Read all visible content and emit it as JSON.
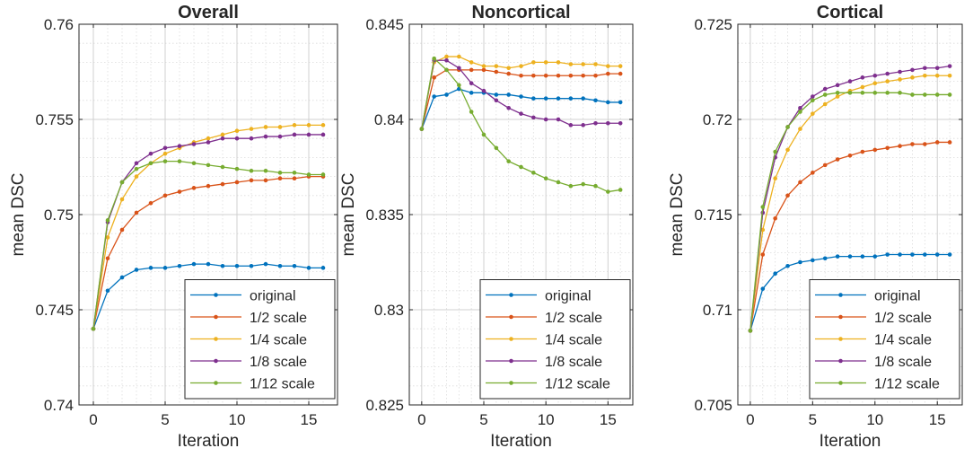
{
  "chart_data": [
    {
      "type": "line",
      "title": "Overall",
      "xlabel": "Iteration",
      "ylabel": "mean DSC",
      "xlim": [
        -1,
        17
      ],
      "ylim": [
        0.74,
        0.76
      ],
      "xticks": [
        "0",
        "5",
        "10",
        "15"
      ],
      "yticks": [
        "0.74",
        "0.745",
        "0.75",
        "0.755",
        "0.76"
      ],
      "grid": true,
      "legend_position": "bottom-right",
      "x": [
        0,
        1,
        2,
        3,
        4,
        5,
        6,
        7,
        8,
        9,
        10,
        11,
        12,
        13,
        14,
        15,
        16
      ],
      "series": [
        {
          "name": "original",
          "color": "#0072BD",
          "values": [
            0.744,
            0.746,
            0.7467,
            0.7471,
            0.7472,
            0.7472,
            0.7473,
            0.7474,
            0.7474,
            0.7473,
            0.7473,
            0.7473,
            0.7474,
            0.7473,
            0.7473,
            0.7472,
            0.7472
          ]
        },
        {
          "name": "1/2 scale",
          "color": "#D95319",
          "values": [
            0.744,
            0.7477,
            0.7492,
            0.7501,
            0.7506,
            0.751,
            0.7512,
            0.7514,
            0.7515,
            0.7516,
            0.7517,
            0.7518,
            0.7518,
            0.7519,
            0.7519,
            0.752,
            0.752
          ]
        },
        {
          "name": "1/4 scale",
          "color": "#EDB120",
          "values": [
            0.744,
            0.7488,
            0.7508,
            0.752,
            0.7527,
            0.7532,
            0.7535,
            0.7538,
            0.754,
            0.7542,
            0.7544,
            0.7545,
            0.7546,
            0.7546,
            0.7547,
            0.7547,
            0.7547
          ]
        },
        {
          "name": "1/8 scale",
          "color": "#7E2F8E",
          "values": [
            0.744,
            0.7496,
            0.7517,
            0.7527,
            0.7532,
            0.7535,
            0.7536,
            0.7537,
            0.7538,
            0.754,
            0.754,
            0.754,
            0.7541,
            0.7541,
            0.7542,
            0.7542,
            0.7542
          ]
        },
        {
          "name": "1/12 scale",
          "color": "#77AC30",
          "values": [
            0.744,
            0.7497,
            0.7517,
            0.7524,
            0.7527,
            0.7528,
            0.7528,
            0.7527,
            0.7526,
            0.7525,
            0.7524,
            0.7523,
            0.7523,
            0.7522,
            0.7522,
            0.7521,
            0.7521
          ]
        }
      ]
    },
    {
      "type": "line",
      "title": "Noncortical",
      "xlabel": "Iteration",
      "ylabel": "mean DSC",
      "xlim": [
        -1,
        17
      ],
      "ylim": [
        0.825,
        0.845
      ],
      "xticks": [
        "0",
        "5",
        "10",
        "15"
      ],
      "yticks": [
        "0.825",
        "0.83",
        "0.835",
        "0.84",
        "0.845"
      ],
      "grid": true,
      "legend_position": "bottom-right",
      "x": [
        0,
        1,
        2,
        3,
        4,
        5,
        6,
        7,
        8,
        9,
        10,
        11,
        12,
        13,
        14,
        15,
        16
      ],
      "series": [
        {
          "name": "original",
          "color": "#0072BD",
          "values": [
            0.8395,
            0.8412,
            0.8413,
            0.8416,
            0.8414,
            0.8414,
            0.8413,
            0.8413,
            0.8412,
            0.8411,
            0.8411,
            0.8411,
            0.8411,
            0.8411,
            0.841,
            0.8409,
            0.8409
          ]
        },
        {
          "name": "1/2 scale",
          "color": "#D95319",
          "values": [
            0.8395,
            0.8422,
            0.8426,
            0.8426,
            0.8426,
            0.8426,
            0.8425,
            0.8424,
            0.8423,
            0.8423,
            0.8423,
            0.8423,
            0.8423,
            0.8423,
            0.8423,
            0.8424,
            0.8424
          ]
        },
        {
          "name": "1/4 scale",
          "color": "#EDB120",
          "values": [
            0.8395,
            0.843,
            0.8433,
            0.8433,
            0.843,
            0.8428,
            0.8428,
            0.8427,
            0.8428,
            0.843,
            0.843,
            0.843,
            0.8429,
            0.8429,
            0.8429,
            0.8428,
            0.8428
          ]
        },
        {
          "name": "1/8 scale",
          "color": "#7E2F8E",
          "values": [
            0.8395,
            0.8431,
            0.8431,
            0.8427,
            0.8419,
            0.8415,
            0.841,
            0.8406,
            0.8403,
            0.8401,
            0.84,
            0.84,
            0.8397,
            0.8397,
            0.8398,
            0.8398,
            0.8398
          ]
        },
        {
          "name": "1/12 scale",
          "color": "#77AC30",
          "values": [
            0.8395,
            0.8432,
            0.8426,
            0.8418,
            0.8404,
            0.8392,
            0.8385,
            0.8378,
            0.8375,
            0.8372,
            0.8369,
            0.8367,
            0.8365,
            0.8366,
            0.8365,
            0.8362,
            0.8363
          ]
        }
      ]
    },
    {
      "type": "line",
      "title": "Cortical",
      "xlabel": "Iteration",
      "ylabel": "mean DSC",
      "xlim": [
        -1,
        17
      ],
      "ylim": [
        0.705,
        0.725
      ],
      "xticks": [
        "0",
        "5",
        "10",
        "15"
      ],
      "yticks": [
        "0.705",
        "0.71",
        "0.715",
        "0.72",
        "0.725"
      ],
      "grid": true,
      "legend_position": "bottom-right",
      "x": [
        0,
        1,
        2,
        3,
        4,
        5,
        6,
        7,
        8,
        9,
        10,
        11,
        12,
        13,
        14,
        15,
        16
      ],
      "series": [
        {
          "name": "original",
          "color": "#0072BD",
          "values": [
            0.7089,
            0.7111,
            0.7119,
            0.7123,
            0.7125,
            0.7126,
            0.7127,
            0.7128,
            0.7128,
            0.7128,
            0.7128,
            0.7129,
            0.7129,
            0.7129,
            0.7129,
            0.7129,
            0.7129
          ]
        },
        {
          "name": "1/2 scale",
          "color": "#D95319",
          "values": [
            0.7089,
            0.7129,
            0.7148,
            0.716,
            0.7167,
            0.7172,
            0.7176,
            0.7179,
            0.7181,
            0.7183,
            0.7184,
            0.7185,
            0.7186,
            0.7187,
            0.7187,
            0.7188,
            0.7188
          ]
        },
        {
          "name": "1/4 scale",
          "color": "#EDB120",
          "values": [
            0.7089,
            0.7142,
            0.7169,
            0.7184,
            0.7195,
            0.7203,
            0.7208,
            0.7212,
            0.7215,
            0.7217,
            0.7219,
            0.722,
            0.7221,
            0.7222,
            0.7223,
            0.7223,
            0.7223
          ]
        },
        {
          "name": "1/8 scale",
          "color": "#7E2F8E",
          "values": [
            0.7089,
            0.7151,
            0.718,
            0.7196,
            0.7206,
            0.7212,
            0.7216,
            0.7218,
            0.722,
            0.7222,
            0.7223,
            0.7224,
            0.7225,
            0.7226,
            0.7227,
            0.7227,
            0.7228
          ]
        },
        {
          "name": "1/12 scale",
          "color": "#77AC30",
          "values": [
            0.7089,
            0.7154,
            0.7183,
            0.7196,
            0.7204,
            0.721,
            0.7213,
            0.7214,
            0.7214,
            0.7214,
            0.7214,
            0.7214,
            0.7214,
            0.7213,
            0.7213,
            0.7213,
            0.7213
          ]
        }
      ]
    }
  ]
}
